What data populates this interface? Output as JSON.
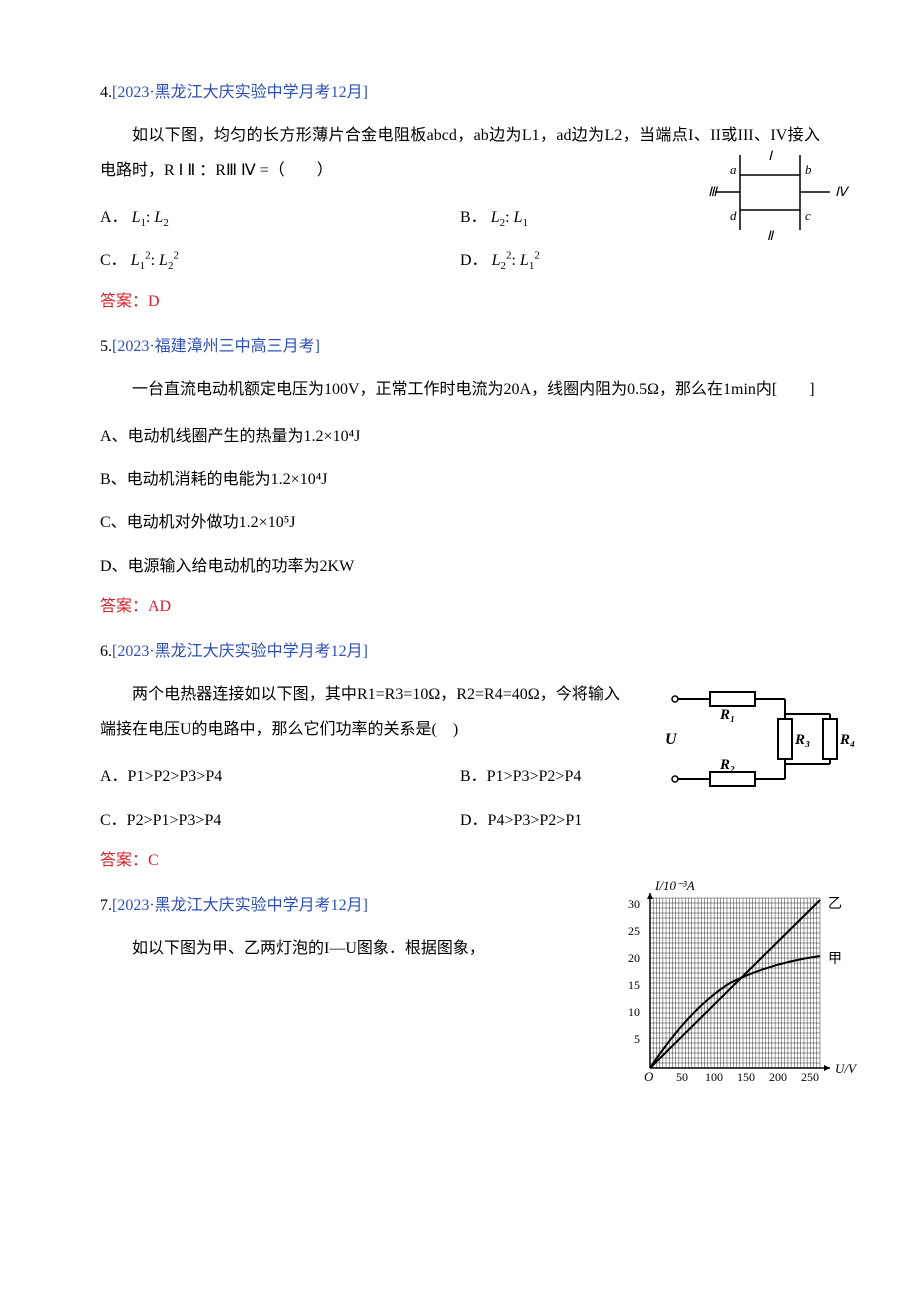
{
  "q4": {
    "num": "4.",
    "source": "[2023·黑龙江大庆实验中学月考12月]",
    "body": "如以下图，均匀的长方形薄片合金电阻板abcd，ab边为L1，ad边为L2，当端点I、II或III、IV接入电路时，R Ⅰ Ⅱ ：RⅢ Ⅳ =（　　）",
    "optA_label": "A．",
    "optA_f1": "L",
    "optA_s1": "1",
    "optA_colon": ":",
    "optA_f2": "L",
    "optA_s2": "2",
    "optB_label": "B．",
    "optB_f1": "L",
    "optB_s1": "2",
    "optB_colon": ":",
    "optB_f2": "L",
    "optB_s2": "1",
    "optC_label": "C．",
    "optC_f1": "L",
    "optC_s1": "1",
    "optC_p1": "2",
    "optC_colon": ":",
    "optC_f2": "L",
    "optC_s2": "2",
    "optC_p2": "2",
    "optD_label": "D．",
    "optD_f1": "L",
    "optD_s1": "2",
    "optD_p1": "2",
    "optD_colon": ":",
    "optD_f2": "L",
    "optD_s2": "1",
    "optD_p2": "2",
    "answer": "答案：D",
    "fig": {
      "labels": {
        "a": "a",
        "b": "b",
        "c": "c",
        "d": "d",
        "I": "Ⅰ",
        "II": "Ⅱ",
        "III": "Ⅲ",
        "IV": "Ⅳ"
      },
      "stroke": "#000000",
      "bg": "#ffffff"
    }
  },
  "q5": {
    "num": "5.",
    "source": "[2023·福建漳州三中高三月考]",
    "body": "一台直流电动机额定电压为100V，正常工作时电流为20A，线圈内阻为0.5Ω，那么在1min内[　　]",
    "optA": "A、电动机线圈产生的热量为1.2×10⁴J",
    "optB": "B、电动机消耗的电能为1.2×10⁴J",
    "optC": "C、电动机对外做功1.2×10⁵J",
    "optD": "D、电源输入给电动机的功率为2KW",
    "answer": "答案：AD"
  },
  "q6": {
    "num": "6.",
    "source": "[2023·黑龙江大庆实验中学月考12月]",
    "body": "两个电热器连接如以下图，其中R1=R3=10Ω，R2=R4=40Ω，今将输入端接在电压U的电路中，那么它们功率的关系是(　)",
    "optA": "A．P1>P2>P3>P4",
    "optB": "B．P1>P3>P2>P4",
    "optC": "C．P2>P1>P3>P4",
    "optD": "D．P4>P3>P2>P1",
    "answer": "答案：C",
    "fig": {
      "U": "U",
      "R1": "R₁",
      "R2": "R₂",
      "R3": "R₃",
      "R4": "R₄",
      "stroke": "#000000"
    }
  },
  "q7": {
    "num": "7.",
    "source": "[2023·黑龙江大庆实验中学月考12月]",
    "body": "如以下图为甲、乙两灯泡的I—U图象．根据图象，",
    "fig": {
      "ylabel": "I/10⁻³A",
      "xlabel": "U/V",
      "yticks": [
        "5",
        "10",
        "15",
        "20",
        "25",
        "30"
      ],
      "xticks": [
        "50",
        "100",
        "150",
        "200",
        "250"
      ],
      "curve1": "乙",
      "curve2": "甲",
      "origin": "O",
      "grid_color": "#000000",
      "bg": "#ffffff",
      "xlim": [
        0,
        270
      ],
      "ylim": [
        0,
        33
      ]
    }
  }
}
